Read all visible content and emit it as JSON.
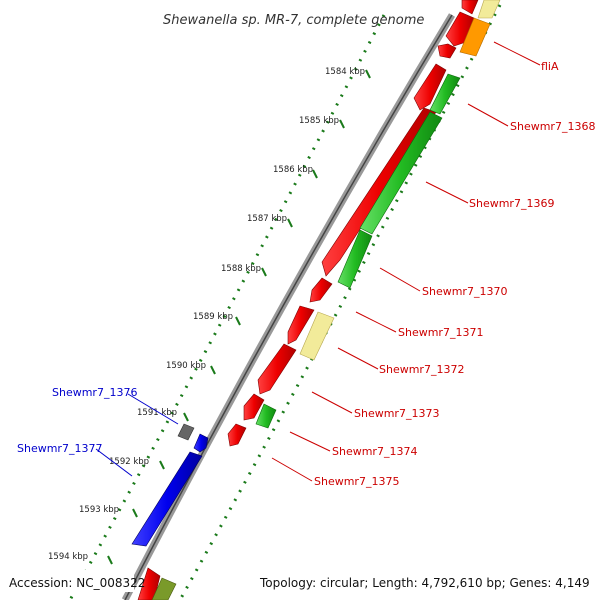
{
  "header": {
    "title": "Shewanella sp. MR-7, complete genome"
  },
  "footer": {
    "accession": "Accession: NC_008322",
    "summary": "Topology: circular; Length: 4,792,610 bp; Genes: 4,149"
  },
  "ticks": [
    "1584 kbp",
    "1585 kbp",
    "1586 kbp",
    "1587 kbp",
    "1588 kbp",
    "1589 kbp",
    "1590 kbp",
    "1591 kbp",
    "1592 kbp",
    "1593 kbp",
    "1594 kbp"
  ],
  "gene_labels": [
    {
      "name": "fliA",
      "color": "#cc0000"
    },
    {
      "name": "Shewmr7_1368",
      "color": "#cc0000"
    },
    {
      "name": "Shewmr7_1369",
      "color": "#cc0000"
    },
    {
      "name": "Shewmr7_1370",
      "color": "#cc0000"
    },
    {
      "name": "Shewmr7_1371",
      "color": "#cc0000"
    },
    {
      "name": "Shewmr7_1372",
      "color": "#cc0000"
    },
    {
      "name": "Shewmr7_1373",
      "color": "#cc0000"
    },
    {
      "name": "Shewmr7_1374",
      "color": "#cc0000"
    },
    {
      "name": "Shewmr7_1375",
      "color": "#cc0000"
    },
    {
      "name": "Shewmr7_1376",
      "color": "#0000cc"
    },
    {
      "name": "Shewmr7_1377",
      "color": "#0000cc"
    }
  ],
  "colors": {
    "cds_forward": "#ff0000",
    "cds_reverse": "#0000ff",
    "gene_green": "#33cc33",
    "gene_pale": "#f2eb9a",
    "gene_orange": "#ff9900",
    "gene_gray": "#666666",
    "backbone": "#999999",
    "tick_dots": "#1a7a1a"
  }
}
